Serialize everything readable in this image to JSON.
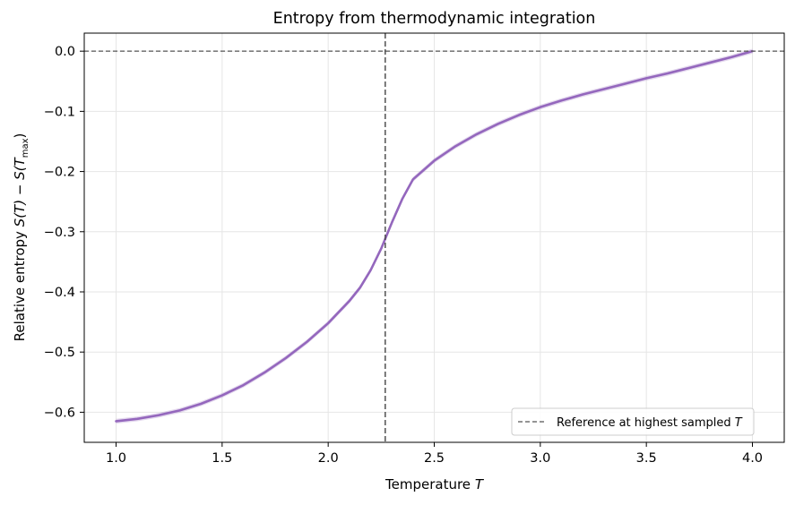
{
  "chart_data": {
    "type": "line",
    "title": "Entropy from thermodynamic integration",
    "xlabel": "Temperature",
    "xlabel_italic": "T",
    "ylabel": "Relative entropy",
    "ylabel_italic": "S(T) − S(T",
    "ylabel_sub": "max",
    "ylabel_close": ")",
    "xlim": [
      0.85,
      4.15
    ],
    "ylim": [
      -0.65,
      0.03
    ],
    "xticks": [
      1.0,
      1.5,
      2.0,
      2.5,
      3.0,
      3.5,
      4.0
    ],
    "xtick_labels": [
      "1.0",
      "1.5",
      "2.0",
      "2.5",
      "3.0",
      "3.5",
      "4.0"
    ],
    "yticks": [
      0.0,
      -0.1,
      -0.2,
      -0.3,
      -0.4,
      -0.5,
      -0.6
    ],
    "ytick_labels": [
      "0.0",
      "−0.1",
      "−0.2",
      "−0.3",
      "−0.4",
      "−0.5",
      "−0.6"
    ],
    "grid": true,
    "legend_placement": "lower-right",
    "series": [
      {
        "color": "#9467bd",
        "x": [
          1.0,
          1.1,
          1.2,
          1.3,
          1.4,
          1.5,
          1.6,
          1.7,
          1.8,
          1.9,
          2.0,
          2.1,
          2.15,
          2.2,
          2.25,
          2.3,
          2.35,
          2.4,
          2.5,
          2.6,
          2.7,
          2.8,
          2.9,
          3.0,
          3.1,
          3.2,
          3.3,
          3.4,
          3.5,
          3.6,
          3.7,
          3.8,
          3.9,
          4.0
        ],
        "y": [
          -0.615,
          -0.611,
          -0.605,
          -0.597,
          -0.586,
          -0.572,
          -0.555,
          -0.534,
          -0.51,
          -0.483,
          -0.452,
          -0.415,
          -0.393,
          -0.364,
          -0.328,
          -0.285,
          -0.245,
          -0.213,
          -0.182,
          -0.158,
          -0.138,
          -0.121,
          -0.106,
          -0.093,
          -0.082,
          -0.072,
          -0.063,
          -0.054,
          -0.045,
          -0.037,
          -0.028,
          -0.019,
          -0.01,
          0.0
        ],
        "band_halfwidth": 0.004
      }
    ],
    "reference_lines": {
      "horizontal_y": 0.0,
      "vertical_x": 2.269,
      "color": "#555555"
    },
    "legend": [
      {
        "label": "Reference at highest sampled",
        "label_italic": "T",
        "style": "dashed",
        "color": "#555555"
      }
    ]
  }
}
